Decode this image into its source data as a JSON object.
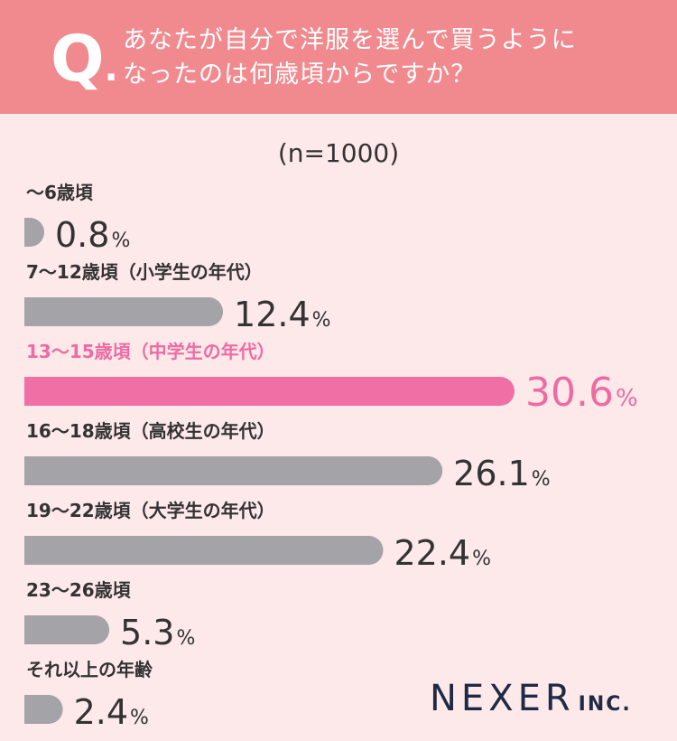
{
  "header": {
    "q_letter": "Q",
    "q_dot": ".",
    "question_line1": "あなたが自分で洋服を選んで買うように",
    "question_line2": "なったのは何歳頃からですか？"
  },
  "sample_size": "(n=1000)",
  "colors": {
    "header_bg": "#f18a8e",
    "page_bg": "#fde8ea",
    "bar_default": "#a3a3a8",
    "bar_highlight": "#f06fa4",
    "text_default": "#333333",
    "text_highlight": "#ee6ba2"
  },
  "chart_data": {
    "type": "bar",
    "orientation": "horizontal",
    "unit": "%",
    "xlim": [
      0,
      30.6
    ],
    "categories": [
      "〜6歳頃",
      "7〜12歳頃（小学生の年代）",
      "13〜15歳頃（中学生の年代）",
      "16〜18歳頃（高校生の年代）",
      "19〜22歳頃（大学生の年代）",
      "23〜26歳頃",
      "それ以上の年齢"
    ],
    "values": [
      0.8,
      12.4,
      30.6,
      26.1,
      22.4,
      5.3,
      2.4
    ],
    "value_labels": [
      "0.8",
      "12.4",
      "30.6",
      "26.1",
      "22.4",
      "5.3",
      "2.4"
    ],
    "highlight_index": 2
  },
  "logo": {
    "main": "NEXER",
    "suffix": "INC."
  }
}
